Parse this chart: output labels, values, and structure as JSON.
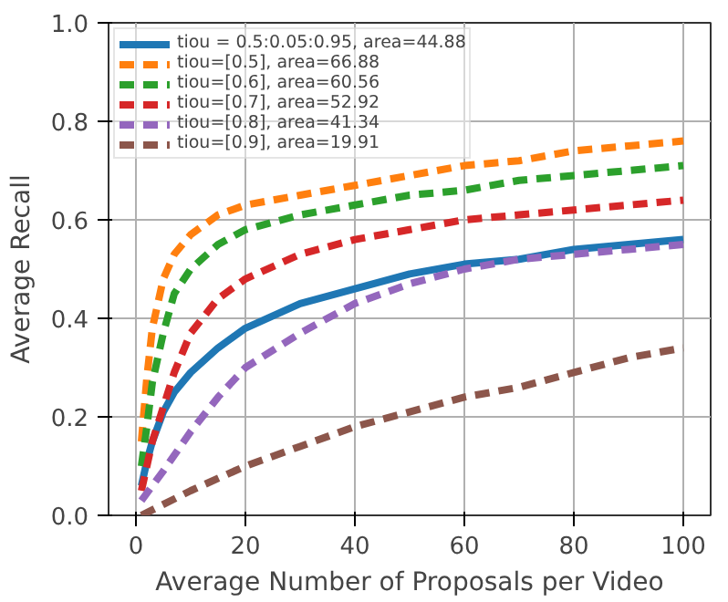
{
  "chart_data": {
    "type": "line",
    "xlabel": "Average Number of Proposals per Video",
    "ylabel": "Average Recall",
    "xlim": [
      -5,
      105
    ],
    "ylim": [
      0,
      1
    ],
    "xticks": [
      0,
      20,
      40,
      60,
      80,
      100
    ],
    "yticks": [
      {
        "value": 0,
        "label": "0.0"
      },
      0.2,
      0.4,
      0.6,
      0.8,
      {
        "value": 1,
        "label": "1.0"
      }
    ],
    "grid": true,
    "legend": "top left",
    "marker": "none",
    "series": [
      {
        "name": "tiou = 0.5:0.05:0.95, area=44.88",
        "color": "#1f77b4",
        "line_style": "solid",
        "x": [
          1,
          2,
          3,
          5,
          7,
          10,
          15,
          20,
          30,
          40,
          50,
          60,
          70,
          80,
          90,
          100
        ],
        "values": [
          0.06,
          0.11,
          0.15,
          0.21,
          0.25,
          0.29,
          0.34,
          0.38,
          0.43,
          0.46,
          0.49,
          0.51,
          0.52,
          0.54,
          0.55,
          0.56
        ]
      },
      {
        "name": "tiou=[0.5], area=66.88",
        "color": "#ff7f0e",
        "line_style": "dashed",
        "x": [
          1,
          2,
          3,
          5,
          7,
          10,
          15,
          20,
          30,
          40,
          50,
          60,
          70,
          80,
          90,
          100
        ],
        "values": [
          0.15,
          0.28,
          0.38,
          0.48,
          0.53,
          0.57,
          0.61,
          0.63,
          0.65,
          0.67,
          0.69,
          0.71,
          0.72,
          0.74,
          0.75,
          0.76
        ]
      },
      {
        "name": "tiou=[0.6], area=60.56",
        "color": "#2ca02c",
        "line_style": "dashed",
        "x": [
          1,
          2,
          3,
          5,
          7,
          10,
          15,
          20,
          30,
          40,
          50,
          60,
          70,
          80,
          90,
          100
        ],
        "values": [
          0.1,
          0.18,
          0.27,
          0.37,
          0.45,
          0.5,
          0.55,
          0.58,
          0.61,
          0.63,
          0.65,
          0.66,
          0.68,
          0.69,
          0.7,
          0.71
        ]
      },
      {
        "name": "tiou=[0.7], area=52.92",
        "color": "#d62728",
        "line_style": "dashed",
        "x": [
          1,
          3,
          5,
          7,
          10,
          15,
          20,
          30,
          40,
          50,
          60,
          70,
          80,
          90,
          100
        ],
        "values": [
          0.05,
          0.15,
          0.22,
          0.29,
          0.37,
          0.44,
          0.48,
          0.53,
          0.56,
          0.58,
          0.6,
          0.61,
          0.62,
          0.63,
          0.64
        ]
      },
      {
        "name": "tiou=[0.8], area=41.34",
        "color": "#9467bd",
        "line_style": "dashed",
        "x": [
          1,
          3,
          5,
          10,
          15,
          20,
          30,
          40,
          50,
          60,
          70,
          80,
          90,
          100
        ],
        "values": [
          0.03,
          0.06,
          0.09,
          0.17,
          0.24,
          0.3,
          0.37,
          0.43,
          0.47,
          0.5,
          0.52,
          0.53,
          0.54,
          0.55
        ]
      },
      {
        "name": "tiou=[0.9], area=19.91",
        "color": "#8c564b",
        "line_style": "dashed",
        "x": [
          1,
          10,
          20,
          30,
          40,
          50,
          60,
          70,
          80,
          90,
          100
        ],
        "values": [
          0.0,
          0.05,
          0.1,
          0.14,
          0.18,
          0.21,
          0.24,
          0.26,
          0.29,
          0.32,
          0.34
        ]
      }
    ]
  }
}
